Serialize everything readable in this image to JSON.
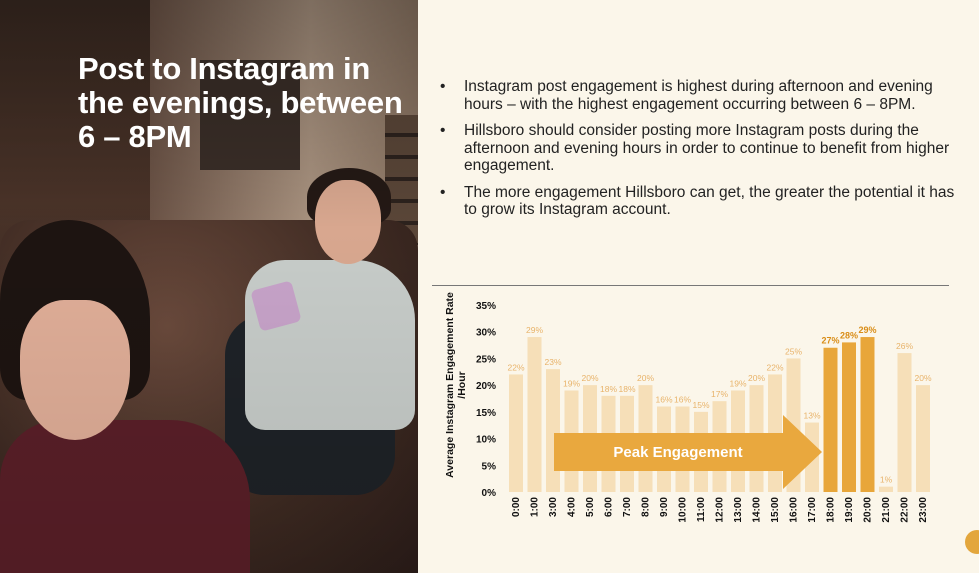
{
  "headline": "Post to Instagram in the evenings, between 6 – 8PM",
  "bullets": [
    "Instagram post engagement is highest during afternoon and evening hours – with the highest engagement occurring between 6 – 8PM.",
    "Hillsboro should consider posting more Instagram posts during the afternoon and evening hours in order to continue to benefit from higher engagement.",
    "The more engagement Hillsboro can get, the greater the potential it has to grow its Instagram account."
  ],
  "colors": {
    "light_bar": "#f6dfb8",
    "peak_bar": "#e8a63a",
    "light_label": "#e8b36a",
    "peak_label": "#d98d17",
    "arrow": "#e9a83e",
    "photo_title": "#ffffff"
  },
  "chart_data": {
    "type": "bar",
    "title": "",
    "xlabel": "",
    "ylabel": "Average Instagram Engagement Rate /Hour",
    "categories": [
      "0:00",
      "1:00",
      "3:00",
      "4:00",
      "5:00",
      "6:00",
      "7:00",
      "8:00",
      "9:00",
      "10:00",
      "11:00",
      "12:00",
      "13:00",
      "14:00",
      "15:00",
      "16:00",
      "17:00",
      "18:00",
      "19:00",
      "20:00",
      "21:00",
      "22:00",
      "23:00"
    ],
    "values": [
      22,
      29,
      23,
      19,
      20,
      18,
      18,
      20,
      16,
      16,
      15,
      17,
      19,
      20,
      22,
      25,
      13,
      27,
      28,
      29,
      1,
      26,
      20
    ],
    "value_labels": [
      "22%",
      "29%",
      "23%",
      "19%",
      "20%",
      "18%",
      "18%",
      "20%",
      "16%",
      "16%",
      "15%",
      "17%",
      "19%",
      "20%",
      "22%",
      "25%",
      "13%",
      "27%",
      "28%",
      "29%",
      "1%",
      "26%",
      "20%"
    ],
    "highlighted_categories": [
      "18:00",
      "19:00",
      "20:00"
    ],
    "ylim": [
      0,
      35
    ],
    "yticks": [
      "0%",
      "5%",
      "10%",
      "15%",
      "20%",
      "25%",
      "30%",
      "35%"
    ],
    "annotation": "Peak Engagement",
    "grid": false,
    "legend": "none"
  }
}
